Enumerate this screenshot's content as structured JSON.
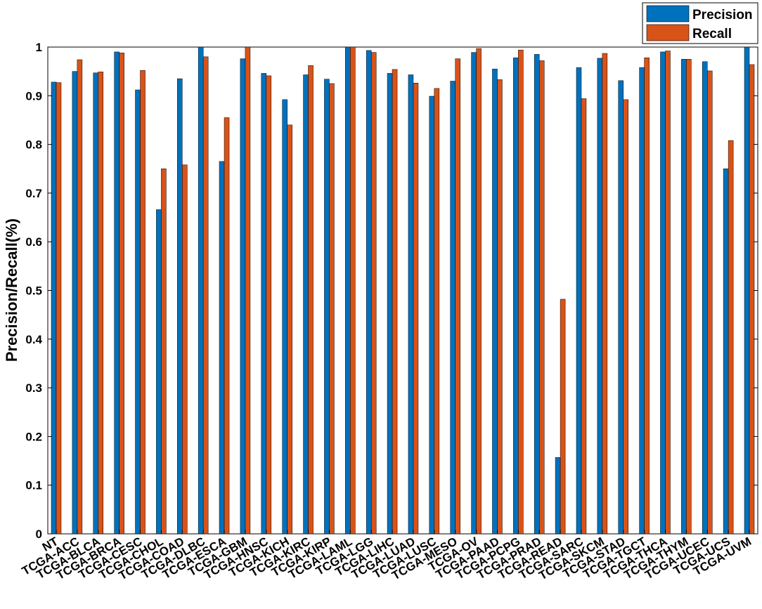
{
  "chart_data": {
    "type": "bar",
    "title": "",
    "xlabel": "",
    "ylabel": "Precision/Recall(%)",
    "ylim": [
      0,
      1
    ],
    "yticks": [
      "0",
      "0.1",
      "0.2",
      "0.3",
      "0.4",
      "0.5",
      "0.6",
      "0.7",
      "0.8",
      "0.9",
      "1"
    ],
    "grid": false,
    "legend_position": "top-right",
    "categories": [
      "NT",
      "TCGA-ACC",
      "TCGA-BLCA",
      "TCGA-BRCA",
      "TCGA-CESC",
      "TCGA-CHOL",
      "TCGA-COAD",
      "TCGA-DLBC",
      "TCGA-ESCA",
      "TCGA-GBM",
      "TCGA-HNSC",
      "TCGA-KICH",
      "TCGA-KIRC",
      "TCGA-KIRP",
      "TCGA-LAML",
      "TCGA-LGG",
      "TCGA-LIHC",
      "TCGA-LUAD",
      "TCGA-LUSC",
      "TCGA-MESO",
      "TCGA-OV",
      "TCGA-PAAD",
      "TCGA-PCPG",
      "TCGA-PRAD",
      "TCGA-READ",
      "TCGA-SARC",
      "TCGA-SKCM",
      "TCGA-STAD",
      "TCGA-TGCT",
      "TCGA-THCA",
      "TCGA-THYM",
      "TCGA-UCEC",
      "TCGA-UCS",
      "TCGA-UVM"
    ],
    "series": [
      {
        "name": "Precision",
        "color": "#0072BD",
        "values": [
          0.928,
          0.95,
          0.947,
          0.99,
          0.912,
          0.666,
          0.935,
          1.0,
          0.765,
          0.976,
          0.946,
          0.892,
          0.943,
          0.934,
          1.0,
          0.993,
          0.946,
          0.943,
          0.899,
          0.93,
          0.989,
          0.955,
          0.978,
          0.985,
          0.157,
          0.958,
          0.977,
          0.931,
          0.958,
          0.99,
          0.975,
          0.97,
          0.75,
          1.0
        ]
      },
      {
        "name": "Recall",
        "color": "#D95319",
        "values": [
          0.927,
          0.974,
          0.949,
          0.988,
          0.952,
          0.75,
          0.758,
          0.98,
          0.855,
          1.0,
          0.941,
          0.84,
          0.962,
          0.925,
          1.0,
          0.989,
          0.954,
          0.926,
          0.915,
          0.976,
          0.997,
          0.933,
          0.994,
          0.972,
          0.482,
          0.894,
          0.987,
          0.892,
          0.978,
          0.992,
          0.975,
          0.951,
          0.808,
          0.964
        ]
      }
    ]
  }
}
